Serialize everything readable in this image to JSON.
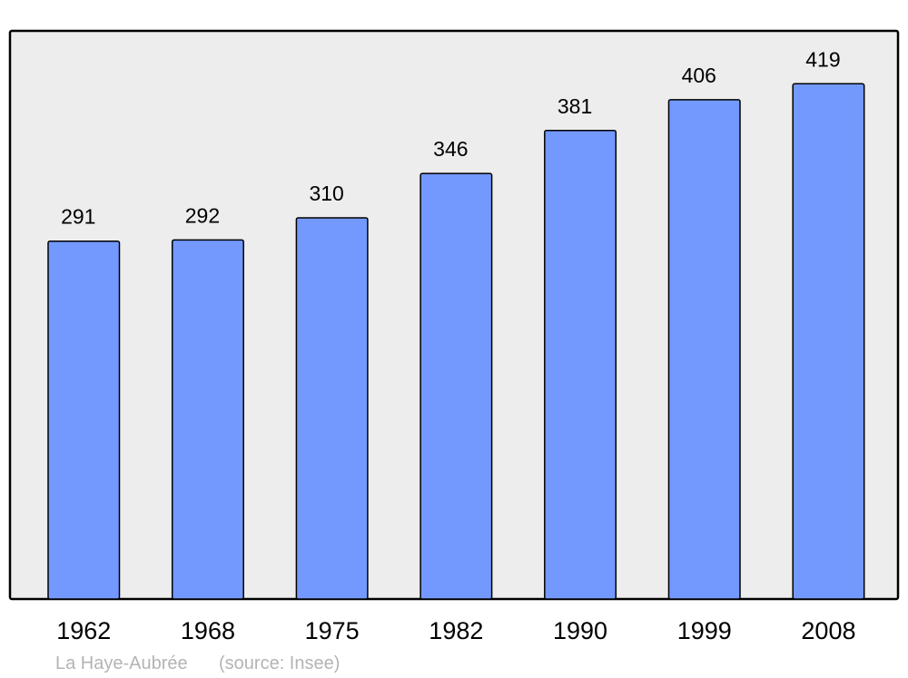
{
  "chart_data": {
    "type": "bar",
    "categories": [
      "1962",
      "1968",
      "1975",
      "1982",
      "1990",
      "1999",
      "2008"
    ],
    "values": [
      291,
      292,
      310,
      346,
      381,
      406,
      419
    ],
    "title": "",
    "xlabel": "",
    "ylabel": "",
    "ylim": [
      0,
      462
    ],
    "grid": false,
    "data_labels": true,
    "colors": {
      "bar": "#7399ff",
      "plot_background": "#ededed",
      "frame": "#000000",
      "caption": "#b4b4b4"
    }
  },
  "caption": {
    "place": "La Haye-Aubrée",
    "source": "(source: Insee)"
  }
}
